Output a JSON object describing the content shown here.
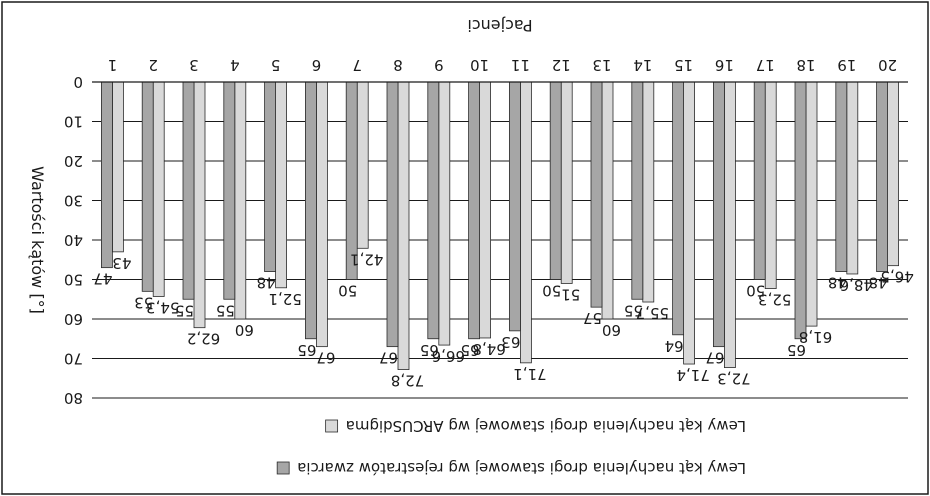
{
  "chart_data": {
    "type": "bar",
    "orientation": "vertical",
    "rendered_rotated_180": true,
    "title": "",
    "xlabel": "Pacjenci",
    "ylabel": "Wartości kątów [°]",
    "ylim": [
      0,
      80
    ],
    "yticks": [
      0,
      10,
      20,
      30,
      40,
      50,
      60,
      70,
      80
    ],
    "grid": true,
    "legend_position": "bottom",
    "categories": [
      "1",
      "2",
      "3",
      "4",
      "5",
      "6",
      "7",
      "8",
      "9",
      "10",
      "11",
      "12",
      "13",
      "14",
      "15",
      "16",
      "17",
      "18",
      "19",
      "20"
    ],
    "series": [
      {
        "name": "Lewy kąt nachylenia drogi stawowej wg rejestratów zwarcia",
        "color": "#a6a6a6",
        "values": [
          47,
          53,
          55,
          55,
          48,
          65,
          50,
          67,
          65,
          65,
          63,
          50,
          57,
          55,
          64,
          67,
          50,
          65,
          48,
          48
        ],
        "labels": [
          "47",
          "53",
          "55",
          "55",
          "48",
          "65",
          "50",
          "67",
          "65",
          "65",
          "63",
          "50",
          "57",
          "55",
          "64",
          "67",
          "50",
          "65",
          "48",
          "48"
        ]
      },
      {
        "name": "Lewy kąt nachylenia drogi stawowej wg ARCUSdigma",
        "color": "#d9d9d9",
        "values": [
          43,
          54.3,
          62.2,
          60,
          52.1,
          67,
          42.1,
          72.8,
          66.6,
          64.8,
          71.1,
          51,
          60,
          55.7,
          71.4,
          72.3,
          52.3,
          61.8,
          48.6,
          46.5
        ],
        "labels": [
          "43",
          "54,3",
          "62,2",
          "60",
          "52,1",
          "67",
          "42,1",
          "72,8",
          "66,6",
          "64,8",
          "71,1",
          "51",
          "60",
          "55,7",
          "71,4",
          "72,3",
          "52,3",
          "61,8",
          "48,6",
          "46,5"
        ]
      }
    ]
  }
}
